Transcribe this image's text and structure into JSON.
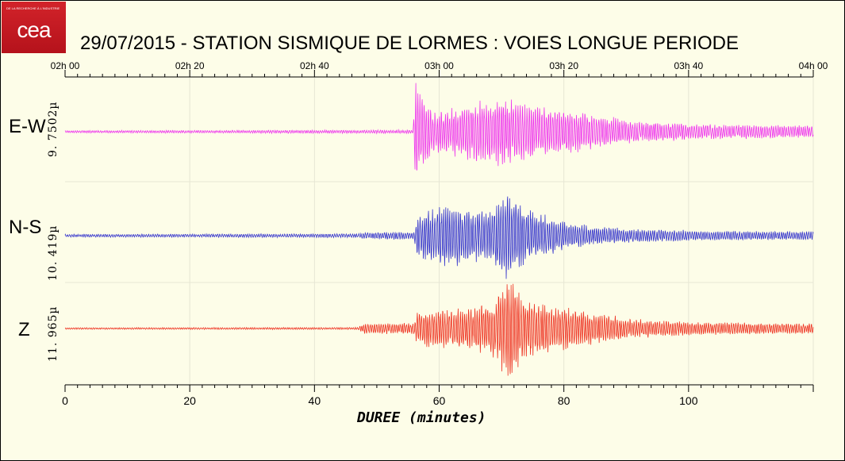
{
  "logo": {
    "text": "cea",
    "tagline": "DE LA RECHERCHE À L'INDUSTRIE"
  },
  "colors": {
    "background": "#fdfde8",
    "ew": "#ee33ee",
    "ns": "#3333cc",
    "z": "#ee3322"
  },
  "chart_data": {
    "type": "line",
    "title": "29/07/2015  -  STATION SISMIQUE DE LORMES : VOIES LONGUE PERIODE",
    "xlabel": "DUREE (minutes)",
    "xlim": [
      0,
      120
    ],
    "x_ticks_bottom": [
      "0",
      "20",
      "40",
      "60",
      "80",
      "100"
    ],
    "x_ticks_top": [
      "02h 00",
      "02h 20",
      "02h 40",
      "03h 00",
      "03h 20",
      "03h 40",
      "04h 00"
    ],
    "series": [
      {
        "name": "E-W",
        "scale": "9. 7502µ",
        "color": "#ee33ee",
        "envelope": {
          "minutes": [
            0,
            55.8,
            56.2,
            57.5,
            59,
            62,
            66,
            70,
            74,
            78,
            84,
            90,
            100,
            110,
            120
          ],
          "amplitude": [
            0.02,
            0.03,
            0.9,
            0.75,
            0.35,
            0.4,
            0.55,
            0.62,
            0.5,
            0.42,
            0.32,
            0.2,
            0.14,
            0.12,
            0.1
          ]
        }
      },
      {
        "name": "N-S",
        "scale": "10. 419µ",
        "color": "#3333cc",
        "envelope": {
          "minutes": [
            0,
            47,
            48,
            56,
            56.5,
            58,
            61,
            64,
            68,
            71.5,
            74,
            80,
            86,
            95,
            110,
            120
          ],
          "amplitude": [
            0.03,
            0.04,
            0.07,
            0.08,
            0.45,
            0.52,
            0.65,
            0.58,
            0.5,
            0.95,
            0.55,
            0.3,
            0.18,
            0.12,
            0.09,
            0.09
          ]
        }
      },
      {
        "name": "Z",
        "scale": "11. 965µ",
        "color": "#ee3322",
        "envelope": {
          "minutes": [
            0,
            47,
            48,
            56,
            56.5,
            60,
            64,
            68,
            71.5,
            74,
            78,
            84,
            90,
            100,
            120
          ],
          "amplitude": [
            0.015,
            0.02,
            0.09,
            0.1,
            0.3,
            0.34,
            0.36,
            0.45,
            0.95,
            0.55,
            0.42,
            0.3,
            0.18,
            0.12,
            0.09
          ]
        }
      }
    ]
  }
}
